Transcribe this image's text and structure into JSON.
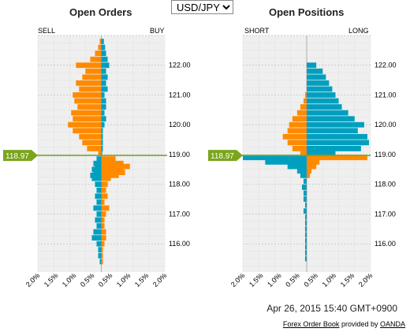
{
  "instrument": {
    "selected": "USD/JPY",
    "options": [
      "USD/JPY"
    ]
  },
  "colors": {
    "orange": "#ff8a00",
    "teal": "#009fbf",
    "marker": "#7aa51d",
    "panel_bg": "#efefef",
    "grid": "#c8c8c8"
  },
  "current_price": "118.97",
  "timestamp": "Apr 26, 2015 15:40 GMT+0900",
  "footer": {
    "link_label": "Forex Order Book",
    "provided_text": "provided by",
    "provider_label": "OANDA"
  },
  "chart_data": [
    {
      "type": "bar",
      "title": "Open Orders",
      "left_label": "SELL",
      "right_label": "BUY",
      "orientation": "horizontal",
      "x_unit": "%",
      "x_ticks": [
        "2.0%",
        "1.5%",
        "1.0%",
        "0.5%",
        "0.5%",
        "1.0%",
        "1.5%",
        "2.0%"
      ],
      "xlim": [
        -2.0,
        2.0
      ],
      "ylim": [
        115.05,
        123.0
      ],
      "y_ticks": [
        "122.00",
        "121.00",
        "120.00",
        "119.00",
        "118.00",
        "117.00",
        "116.00"
      ],
      "current_price": 118.97,
      "series": [
        {
          "color": "orange",
          "prices": [
            122.8,
            122.6,
            122.4,
            122.2,
            122.0,
            121.8,
            121.6,
            121.4,
            121.2,
            121.0,
            120.8,
            120.6,
            120.4,
            120.2,
            120.0,
            119.8,
            119.6,
            119.4,
            119.2,
            119.05,
            118.85,
            118.7,
            118.6,
            118.5,
            118.4,
            118.3,
            118.2,
            118.0,
            117.8,
            117.6,
            117.4,
            117.2,
            117.0,
            116.8,
            116.6,
            116.4,
            116.2,
            116.0,
            115.8,
            115.6,
            115.4
          ],
          "values": [
            -0.05,
            -0.1,
            -0.2,
            -0.35,
            -0.8,
            -0.5,
            -0.6,
            -0.8,
            -0.7,
            -0.9,
            -0.85,
            -0.75,
            -0.95,
            -0.9,
            -1.05,
            -0.9,
            -0.7,
            -0.6,
            -0.45,
            -0.1,
            0.45,
            0.7,
            0.9,
            0.7,
            0.75,
            0.55,
            0.3,
            0.2,
            0.15,
            0.2,
            0.1,
            0.25,
            0.15,
            0.1,
            0.1,
            0.15,
            0.15,
            0.1,
            0.05,
            0.05,
            0.05
          ]
        },
        {
          "color": "teal",
          "prices": [
            122.8,
            122.6,
            122.4,
            122.2,
            122.0,
            121.8,
            121.6,
            121.4,
            121.2,
            121.0,
            120.8,
            120.6,
            120.4,
            120.2,
            120.0,
            119.8,
            119.6,
            119.4,
            119.2,
            119.05,
            118.85,
            118.7,
            118.6,
            118.5,
            118.4,
            118.3,
            118.2,
            118.0,
            117.8,
            117.6,
            117.4,
            117.2,
            117.0,
            116.8,
            116.6,
            116.4,
            116.2,
            116.0,
            115.8,
            115.6,
            115.4
          ],
          "values": [
            0.08,
            0.12,
            0.15,
            0.2,
            0.25,
            0.15,
            0.2,
            0.15,
            0.2,
            0.1,
            0.15,
            0.15,
            0.1,
            0.15,
            0.1,
            0.05,
            0.05,
            0.05,
            0.05,
            0.03,
            -0.15,
            -0.25,
            -0.2,
            -0.3,
            -0.25,
            -0.35,
            -0.3,
            -0.2,
            -0.15,
            -0.2,
            -0.15,
            -0.25,
            -0.15,
            -0.2,
            -0.15,
            -0.25,
            -0.3,
            -0.15,
            -0.1,
            -0.1,
            -0.05
          ]
        }
      ]
    },
    {
      "type": "bar",
      "title": "Open Positions",
      "left_label": "SHORT",
      "right_label": "LONG",
      "orientation": "horizontal",
      "x_unit": "%",
      "x_ticks": [
        "2.0%",
        "1.5%",
        "1.0%",
        "0.5%",
        "0.5%",
        "1.0%",
        "1.5%",
        "2.0%"
      ],
      "xlim": [
        -2.0,
        2.0
      ],
      "ylim": [
        115.05,
        123.0
      ],
      "y_ticks": [
        "122.00",
        "121.00",
        "120.00",
        "119.00",
        "118.00",
        "117.00",
        "116.00"
      ],
      "current_price": 118.97,
      "series": [
        {
          "color": "teal",
          "prices": [
            122.0,
            121.8,
            121.6,
            121.4,
            121.2,
            121.0,
            120.8,
            120.6,
            120.4,
            120.2,
            120.0,
            119.8,
            119.6,
            119.4,
            119.2,
            119.05,
            118.9,
            118.75,
            118.6,
            118.45,
            118.3,
            118.1,
            117.9,
            117.7,
            117.5,
            117.3,
            117.1,
            116.9,
            116.7,
            116.5,
            116.3,
            116.1,
            115.9,
            115.7,
            115.5
          ],
          "values": [
            0.3,
            0.5,
            0.6,
            0.7,
            0.8,
            0.9,
            1.0,
            1.1,
            1.3,
            1.5,
            1.8,
            1.6,
            1.9,
            1.95,
            1.7,
            0.9,
            -2.0,
            -1.3,
            -0.6,
            -0.3,
            -0.2,
            -0.1,
            -0.15,
            -0.1,
            -0.1,
            -0.05,
            -0.1,
            -0.05,
            -0.05,
            -0.05,
            -0.05,
            -0.05,
            -0.05,
            -0.05,
            -0.05
          ]
        },
        {
          "color": "orange",
          "prices": [
            121.0,
            120.8,
            120.6,
            120.4,
            120.2,
            120.0,
            119.8,
            119.6,
            119.4,
            119.2,
            119.05,
            118.9,
            118.75,
            118.6,
            118.45,
            118.3
          ],
          "values": [
            -0.05,
            -0.1,
            -0.2,
            -0.3,
            -0.45,
            -0.55,
            -0.6,
            -0.75,
            -0.6,
            -0.45,
            -0.2,
            1.9,
            0.4,
            0.3,
            0.15,
            0.1
          ]
        }
      ]
    }
  ]
}
